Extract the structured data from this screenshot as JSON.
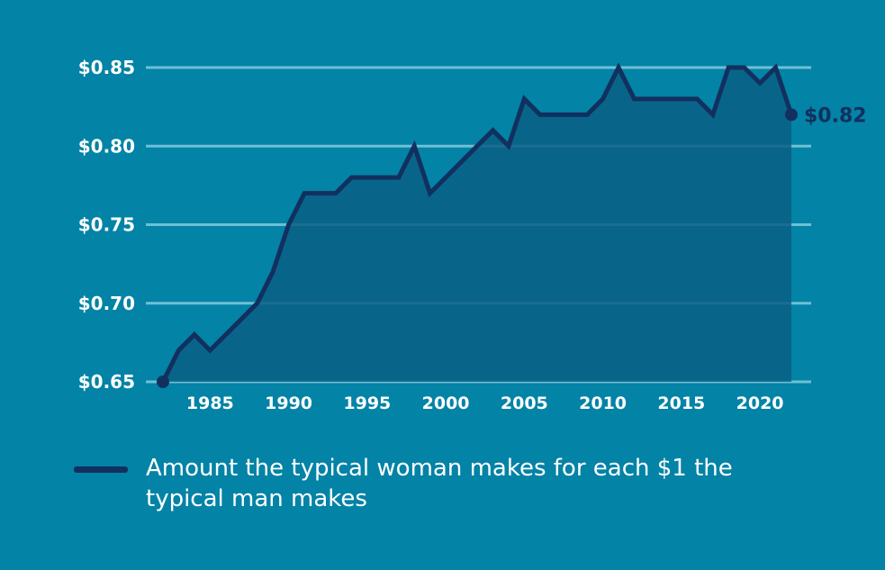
{
  "chart_data": {
    "type": "area",
    "x": [
      1982,
      1983,
      1984,
      1985,
      1986,
      1987,
      1988,
      1989,
      1990,
      1991,
      1992,
      1993,
      1994,
      1995,
      1996,
      1997,
      1998,
      1999,
      2000,
      2001,
      2002,
      2003,
      2004,
      2005,
      2006,
      2007,
      2008,
      2009,
      2010,
      2011,
      2012,
      2013,
      2014,
      2015,
      2016,
      2017,
      2018,
      2019,
      2020,
      2021,
      2022
    ],
    "series": [
      {
        "name": "Amount the typical woman makes for each $1 the typical man makes",
        "values": [
          0.65,
          0.67,
          0.68,
          0.67,
          0.68,
          0.69,
          0.7,
          0.72,
          0.75,
          0.77,
          0.77,
          0.77,
          0.78,
          0.78,
          0.78,
          0.78,
          0.8,
          0.77,
          0.78,
          0.79,
          0.8,
          0.81,
          0.8,
          0.83,
          0.82,
          0.82,
          0.82,
          0.82,
          0.83,
          0.85,
          0.83,
          0.83,
          0.83,
          0.83,
          0.83,
          0.82,
          0.85,
          0.85,
          0.84,
          0.85,
          0.82
        ]
      }
    ],
    "yticks": [
      "$0.65",
      "$0.70",
      "$0.75",
      "$0.80",
      "$0.85"
    ],
    "ytick_values": [
      0.65,
      0.7,
      0.75,
      0.8,
      0.85
    ],
    "xticks": [
      "1985",
      "1990",
      "1995",
      "2000",
      "2005",
      "2010",
      "2015",
      "2020"
    ],
    "xtick_values": [
      1985,
      1990,
      1995,
      2000,
      2005,
      2010,
      2015,
      2020
    ],
    "end_label": "$0.82",
    "ylim": [
      0.65,
      0.85
    ],
    "xlim": [
      1982,
      2022
    ],
    "grid": true,
    "legend_position": "bottom-left",
    "colors": {
      "background": "#0383a6",
      "line": "#12305f",
      "area": "#0a5f85",
      "grid": "#6ec0d6"
    }
  }
}
